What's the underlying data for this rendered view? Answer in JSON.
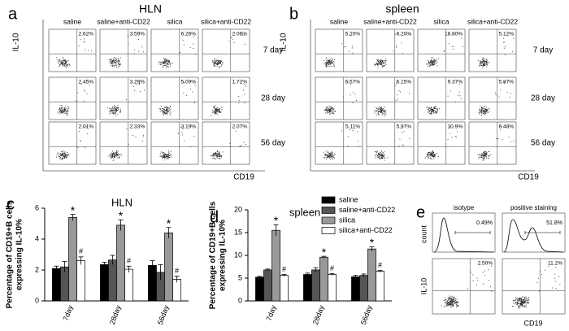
{
  "panel_labels": [
    "a",
    "b",
    "c",
    "d",
    "e"
  ],
  "flow_panels": [
    {
      "title": "HLN",
      "columns": [
        "saline",
        "saline+anti-CD22",
        "silica",
        "silica+anti-CD22"
      ],
      "rows": [
        "7 day",
        "28 day",
        "56 day"
      ],
      "percentages": [
        [
          "2.62%",
          "3.59%",
          "6.26%",
          "2.06%"
        ],
        [
          "2.45%",
          "3.29%",
          "5.09%",
          "1.72%"
        ],
        [
          "2.01%",
          "2.33%",
          "3.19%",
          "2.07%"
        ]
      ],
      "y_label": "IL-10",
      "x_label": "CD19"
    },
    {
      "title": "spleen",
      "columns": [
        "saline",
        "saline+anti-CD22",
        "silica",
        "silica+anti-CD22"
      ],
      "rows": [
        "7 day",
        "28 day",
        "56 day"
      ],
      "percentages": [
        [
          "5.20%",
          "6.20%",
          "18.80%",
          "5.12%"
        ],
        [
          "6.57%",
          "6.15%",
          "9.37%",
          "5.87%"
        ],
        [
          "5.11%",
          "5.97%",
          "10.9%",
          "6.48%"
        ]
      ],
      "y_label": "IL-10",
      "x_label": "CD19"
    }
  ],
  "chart_data": [
    {
      "type": "bar",
      "title": "HLN",
      "y_label": [
        "Percentage of CD19+B cells",
        "expressing IL-10%"
      ],
      "categories": [
        "7day",
        "28day",
        "56day"
      ],
      "series": [
        {
          "color": "#000000",
          "values": [
            2.1,
            2.35,
            2.3
          ],
          "errors": [
            0.15,
            0.15,
            0.3
          ]
        },
        {
          "color": "#555555",
          "values": [
            2.2,
            2.65,
            1.85
          ],
          "errors": [
            0.35,
            0.3,
            0.5
          ]
        },
        {
          "color": "#999999",
          "values": [
            5.4,
            4.9,
            4.4
          ],
          "errors": [
            0.2,
            0.35,
            0.35
          ],
          "marker": "*"
        },
        {
          "color": "#ffffff",
          "values": [
            2.6,
            2.05,
            1.4
          ],
          "errors": [
            0.25,
            0.2,
            0.2
          ],
          "marker": "#"
        }
      ],
      "ylim": [
        0,
        6
      ],
      "yticks": [
        0,
        2,
        4,
        6
      ]
    },
    {
      "type": "bar",
      "title": "spleen",
      "y_label": [
        "Percentage of CD19+B cells",
        "expressing IL-10%"
      ],
      "categories": [
        "7day",
        "28day",
        "56day"
      ],
      "series": [
        {
          "name": "saline",
          "color": "#000000",
          "values": [
            5.2,
            5.8,
            5.3
          ],
          "errors": [
            0.2,
            0.3,
            0.3
          ]
        },
        {
          "name": "saline+anti-CD22",
          "color": "#555555",
          "values": [
            6.8,
            6.8,
            5.6
          ],
          "errors": [
            0.2,
            0.5,
            0.3
          ]
        },
        {
          "name": "silica",
          "color": "#999999",
          "values": [
            15.5,
            9.6,
            11.4
          ],
          "errors": [
            1.2,
            0.2,
            0.5
          ],
          "marker": "*"
        },
        {
          "name": "silica+anti-CD22",
          "color": "#ffffff",
          "values": [
            5.6,
            5.8,
            6.5
          ],
          "errors": [
            0.2,
            0.2,
            0.2
          ],
          "marker": "#"
        }
      ],
      "ylim": [
        0,
        20
      ],
      "yticks": [
        0,
        5,
        10,
        15,
        20
      ],
      "legend": "upper right"
    }
  ],
  "panel_e": {
    "histograms": [
      {
        "title": "isotype",
        "percentage": "0.49%"
      },
      {
        "title": "positive staining",
        "percentage": "51.8%"
      }
    ],
    "histogram_y_label": "count",
    "dot_plots": [
      "2.50%",
      "11.2%"
    ],
    "y_label": "IL-10",
    "x_label": "CD19"
  }
}
